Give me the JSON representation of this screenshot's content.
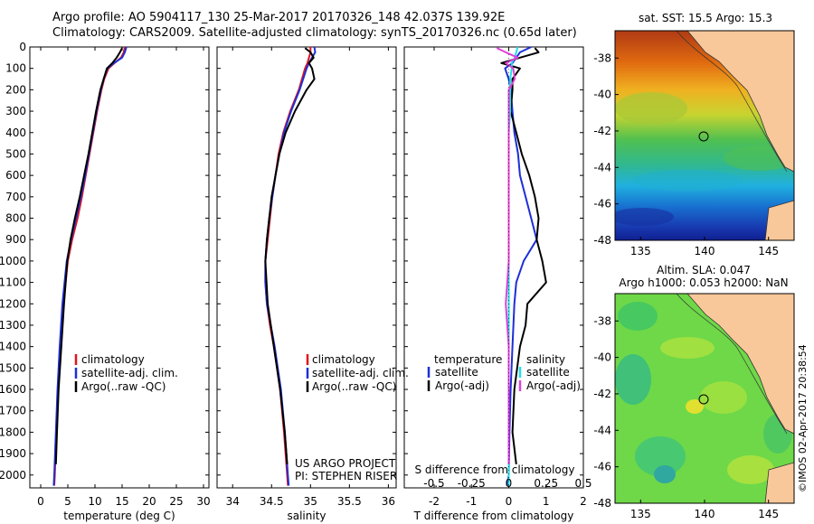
{
  "header": {
    "line1": "Argo profile: AO 5904117_130 25-Mar-2017 20170326_148 42.037S 139.92E",
    "line2": "Climatology: CARS2009. Satellite-adjusted climatology: synTS_20170326.nc (0.65d later)"
  },
  "imos_credit": "©IMOS 02-Apr-2017 20:38:54",
  "colors": {
    "climatology": "#e0141e",
    "satellite": "#1e2fd6",
    "argo": "#000000",
    "cyan": "#1ee0e8",
    "magenta": "#e040d8",
    "land": "#f9c89a"
  },
  "chart_data": [
    {
      "type": "line",
      "id": "temperature",
      "xlabel": "temperature (deg C)",
      "ylabel": "",
      "xlim": [
        -2,
        31
      ],
      "ylim": [
        2060,
        0
      ],
      "xticks": [
        0,
        5,
        10,
        15,
        20,
        25,
        30
      ],
      "yticks": [
        0,
        100,
        200,
        300,
        400,
        500,
        600,
        700,
        800,
        900,
        1000,
        1100,
        1200,
        1300,
        1400,
        1500,
        1600,
        1700,
        1800,
        1900,
        2000
      ],
      "legend": [
        "climatology",
        "satellite-adj. clim.",
        "Argo(..raw -QC)"
      ],
      "series": [
        {
          "name": "climatology",
          "color": "#e0141e",
          "depth": [
            0,
            25,
            50,
            75,
            100,
            150,
            200,
            300,
            400,
            500,
            600,
            700,
            800,
            900,
            1000,
            1200,
            1400,
            1600,
            1800,
            2000,
            2050
          ],
          "values": [
            15.5,
            15.3,
            14.8,
            13.6,
            12.5,
            11.7,
            11.2,
            10.4,
            9.7,
            9.0,
            8.3,
            7.6,
            6.8,
            5.8,
            5.0,
            4.2,
            3.6,
            3.2,
            2.9,
            2.6,
            2.5
          ]
        },
        {
          "name": "satellite-adj. clim.",
          "color": "#1e2fd6",
          "depth": [
            0,
            25,
            50,
            75,
            100,
            150,
            200,
            300,
            400,
            500,
            600,
            700,
            800,
            900,
            1000,
            1200,
            1400,
            1600,
            1800,
            2000,
            2050
          ],
          "values": [
            15.8,
            15.5,
            15.0,
            13.5,
            12.3,
            11.6,
            11.1,
            10.3,
            9.6,
            8.9,
            8.2,
            7.4,
            6.5,
            5.6,
            4.8,
            4.0,
            3.5,
            3.1,
            2.8,
            2.5,
            2.4
          ]
        },
        {
          "name": "Argo(..raw -QC)",
          "color": "#000000",
          "depth": [
            5,
            25,
            50,
            75,
            100,
            150,
            200,
            300,
            400,
            500,
            600,
            700,
            800,
            900,
            1000,
            1200,
            1400,
            1600,
            1800,
            1950
          ],
          "values": [
            15.0,
            14.6,
            14.0,
            13.2,
            12.2,
            11.6,
            11.0,
            10.2,
            9.5,
            8.8,
            8.0,
            7.2,
            6.3,
            5.5,
            4.9,
            4.3,
            3.8,
            3.3,
            3.0,
            2.8
          ]
        }
      ]
    },
    {
      "type": "line",
      "id": "salinity",
      "xlabel": "salinity",
      "ylabel": "",
      "xlim": [
        33.8,
        36.1
      ],
      "ylim": [
        2060,
        0
      ],
      "xticks": [
        34,
        34.5,
        35,
        35.5,
        36
      ],
      "legend": [
        "climatology",
        "satellite-adj. clim.",
        "Argo(..raw -QC)"
      ],
      "annotation": [
        "US ARGO PROJECT",
        "PI: STEPHEN RISER"
      ],
      "series": [
        {
          "name": "climatology",
          "color": "#e0141e",
          "depth": [
            0,
            25,
            50,
            75,
            100,
            200,
            300,
            400,
            500,
            600,
            700,
            800,
            900,
            1000,
            1100,
            1200,
            1300,
            1400,
            1500,
            1600,
            1800,
            2000,
            2050
          ],
          "values": [
            35.0,
            35.0,
            34.98,
            34.96,
            34.93,
            34.85,
            34.74,
            34.65,
            34.59,
            34.55,
            34.51,
            34.48,
            34.45,
            34.42,
            34.42,
            34.44,
            34.48,
            34.53,
            34.57,
            34.61,
            34.66,
            34.7,
            34.71
          ]
        },
        {
          "name": "satellite-adj. clim.",
          "color": "#1e2fd6",
          "depth": [
            0,
            25,
            50,
            75,
            100,
            200,
            300,
            400,
            500,
            600,
            700,
            800,
            900,
            1000,
            1100,
            1200,
            1300,
            1400,
            1500,
            1600,
            1800,
            2000,
            2050
          ],
          "values": [
            35.05,
            35.06,
            35.02,
            34.98,
            34.95,
            34.86,
            34.75,
            34.66,
            34.6,
            34.55,
            34.51,
            34.47,
            34.44,
            34.42,
            34.42,
            34.44,
            34.49,
            34.54,
            34.58,
            34.62,
            34.67,
            34.71,
            34.72
          ]
        },
        {
          "name": "Argo(..raw -QC)",
          "color": "#000000",
          "depth": [
            5,
            25,
            50,
            75,
            100,
            150,
            200,
            300,
            400,
            500,
            600,
            700,
            800,
            900,
            1000,
            1200,
            1400,
            1600,
            1800,
            1950
          ],
          "values": [
            34.93,
            35.0,
            35.04,
            34.98,
            35.02,
            35.05,
            34.95,
            34.8,
            34.68,
            34.6,
            34.55,
            34.5,
            34.47,
            34.44,
            34.42,
            34.45,
            34.53,
            34.61,
            34.67,
            34.7
          ]
        }
      ]
    },
    {
      "type": "line",
      "id": "difference",
      "xlabel": "T difference from climatology",
      "ylabel": "",
      "xlim": [
        -2.8,
        2.0
      ],
      "ylim": [
        2060,
        0
      ],
      "xticks": [
        -2,
        -1,
        0,
        1,
        2
      ],
      "secondary_ticks": [
        -0.5,
        -0.25,
        0,
        0.25,
        0.5
      ],
      "secondary_label": "S difference from climatology",
      "legend_temperature_title": "temperature",
      "legend_salinity_title": "salinity",
      "legend_left": [
        "satellite",
        "Argo(-adj)"
      ],
      "legend_right": [
        "satellite",
        "Argo(-adj)"
      ],
      "series": [
        {
          "name": "T satellite",
          "color": "#1e2fd6",
          "depth": [
            0,
            25,
            50,
            75,
            100,
            150,
            200,
            300,
            400,
            500,
            600,
            700,
            800,
            900,
            1000,
            1100,
            1200,
            1400,
            1600,
            1800,
            2000,
            2050
          ],
          "values": [
            0.6,
            0.3,
            0.2,
            0.1,
            -0.1,
            0.0,
            0.05,
            0.1,
            0.15,
            0.25,
            0.3,
            0.45,
            0.6,
            0.75,
            0.4,
            0.2,
            0.15,
            0.1,
            0.05,
            0.02,
            0.0,
            -0.05
          ]
        },
        {
          "name": "T Argo(-adj)",
          "color": "#000000",
          "depth": [
            5,
            25,
            50,
            75,
            100,
            150,
            200,
            300,
            400,
            500,
            600,
            700,
            800,
            900,
            1000,
            1100,
            1200,
            1300,
            1400,
            1600,
            1800,
            1950
          ],
          "values": [
            0.7,
            0.8,
            0.3,
            -0.2,
            0.3,
            0.1,
            0.1,
            0.05,
            0.2,
            0.35,
            0.55,
            0.7,
            0.8,
            0.75,
            0.9,
            1.0,
            0.5,
            0.45,
            0.3,
            0.15,
            0.1,
            0.2
          ]
        },
        {
          "name": "S satellite",
          "color": "#1ee0e8",
          "depth": [
            0,
            25,
            50,
            75,
            100,
            150,
            200,
            300,
            400,
            600,
            800,
            1000,
            1200,
            1400,
            1600,
            1800,
            2000,
            2050
          ],
          "values": [
            0.06,
            0.05,
            0.04,
            0.02,
            0.02,
            0.01,
            0.01,
            0.01,
            0.0,
            0.0,
            0.0,
            0.0,
            0.0,
            0.0,
            0.0,
            0.0,
            0.0,
            0.0
          ]
        },
        {
          "name": "S Argo(-adj)",
          "color": "#e040d8",
          "depth": [
            5,
            25,
            50,
            75,
            100,
            150,
            200,
            300,
            400,
            600,
            800,
            1000,
            1200,
            1400,
            1600,
            1800,
            1950
          ],
          "values": [
            -0.08,
            -0.02,
            0.06,
            -0.02,
            0.03,
            0.04,
            0.0,
            0.0,
            0.0,
            0.0,
            0.0,
            0.0,
            -0.02,
            0.0,
            0.0,
            0.0,
            0.0
          ]
        }
      ]
    },
    {
      "type": "heatmap",
      "id": "sst_map",
      "title": "sat. SST: 15.5 Argo: 15.3",
      "xticks": [
        135,
        140,
        145
      ],
      "yticks": [
        -38,
        -40,
        -42,
        -44,
        -46,
        -48
      ],
      "xlim": [
        133,
        147
      ],
      "ylim": [
        -48,
        -36.5
      ],
      "marker": {
        "lon": 139.92,
        "lat": -42.037
      }
    },
    {
      "type": "heatmap",
      "id": "sla_map",
      "title_line1": "Altim. SLA: 0.047",
      "title_line2": "Argo h1000: 0.053 h2000: NaN",
      "xticks": [
        135,
        140,
        145
      ],
      "yticks": [
        -38,
        -40,
        -42,
        -44,
        -46,
        -48
      ],
      "xlim": [
        133,
        147
      ],
      "ylim": [
        -48,
        -36.5
      ],
      "marker": {
        "lon": 139.92,
        "lat": -42.037
      }
    }
  ]
}
